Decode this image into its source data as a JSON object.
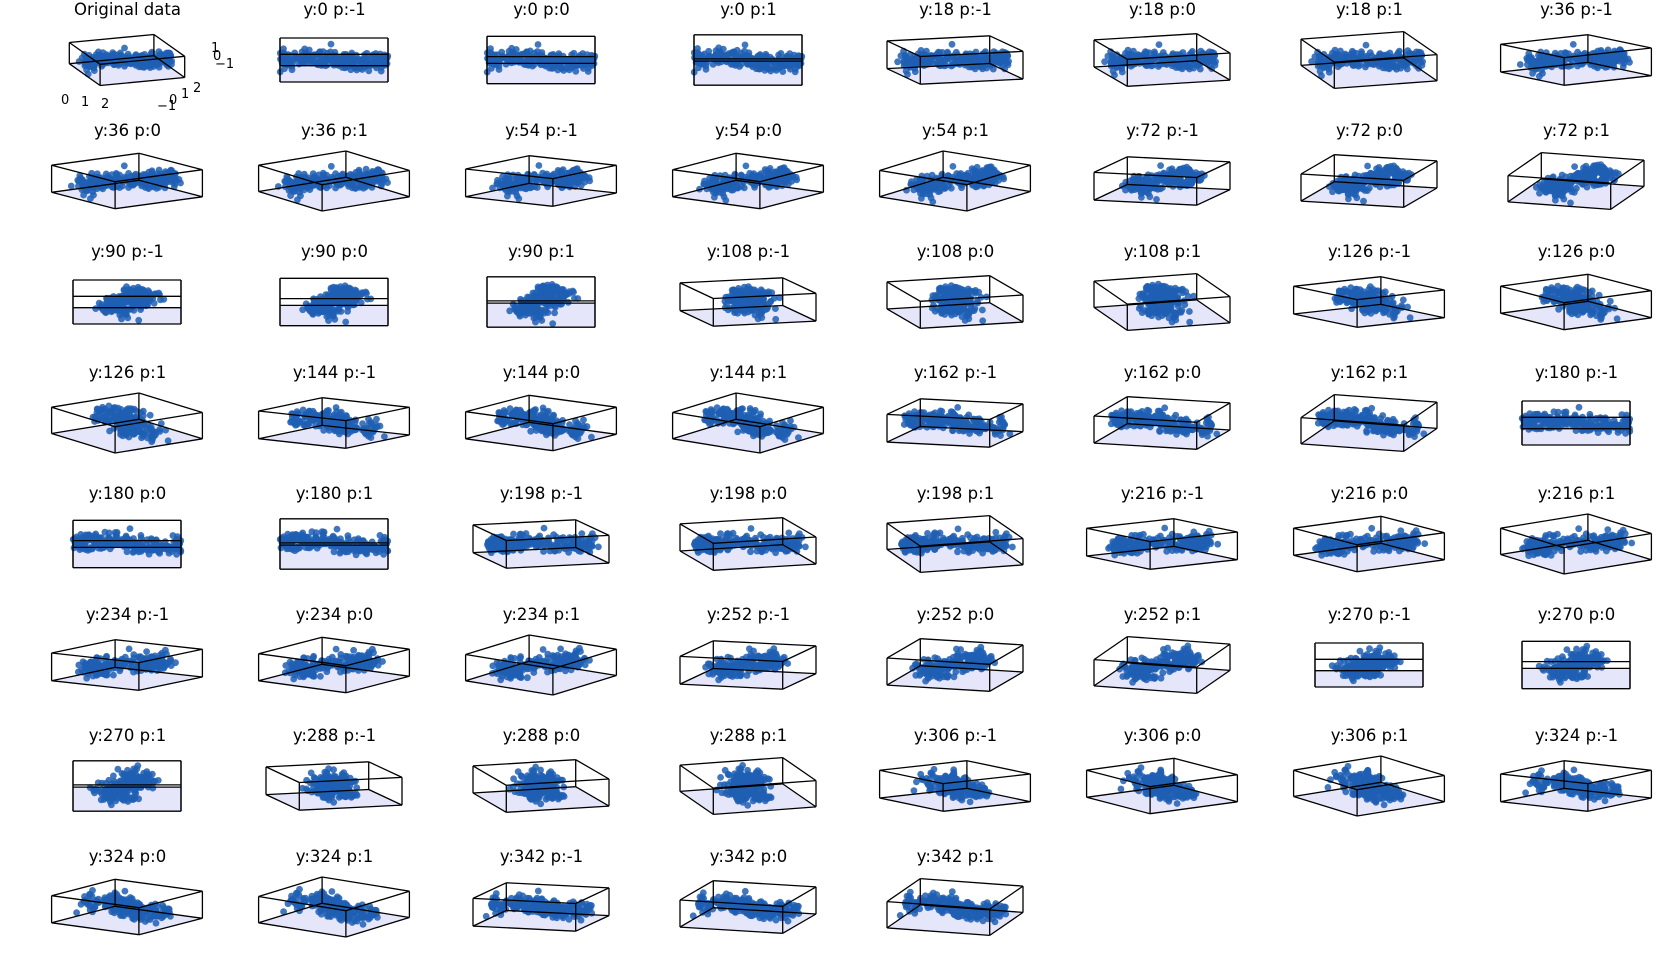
{
  "chart_data": {
    "type": "3d-scatter-grid",
    "description_source": "small multiples of one 3D point cloud viewed from different yaw/pitch angles",
    "colors": {
      "points": "#1f5fb4",
      "pane_fill": "#e6e6fa",
      "box_edge": "#000000"
    },
    "grid": {
      "columns": 8,
      "rows": 8
    },
    "panels": [
      {
        "title": "Original data",
        "yaw": -60,
        "pitch": 30,
        "show_axes": true,
        "x_ticks": [
          "0",
          "1",
          "2"
        ],
        "y_ticks": [
          "−1",
          "0",
          "1",
          "2"
        ],
        "z_ticks": [
          "1",
          "0",
          "−1"
        ]
      },
      {
        "title": "y:0 p:-1",
        "yaw": 0,
        "pitch": -1
      },
      {
        "title": "y:0 p:0",
        "yaw": 0,
        "pitch": 0
      },
      {
        "title": "y:0 p:1",
        "yaw": 0,
        "pitch": 1
      },
      {
        "title": "y:18 p:-1",
        "yaw": 18,
        "pitch": -1
      },
      {
        "title": "y:18 p:0",
        "yaw": 18,
        "pitch": 0
      },
      {
        "title": "y:18 p:1",
        "yaw": 18,
        "pitch": 1
      },
      {
        "title": "y:36 p:-1",
        "yaw": 36,
        "pitch": -1
      },
      {
        "title": "y:36 p:0",
        "yaw": 36,
        "pitch": 0
      },
      {
        "title": "y:36 p:1",
        "yaw": 36,
        "pitch": 1
      },
      {
        "title": "y:54 p:-1",
        "yaw": 54,
        "pitch": -1
      },
      {
        "title": "y:54 p:0",
        "yaw": 54,
        "pitch": 0
      },
      {
        "title": "y:54 p:1",
        "yaw": 54,
        "pitch": 1
      },
      {
        "title": "y:72 p:-1",
        "yaw": 72,
        "pitch": -1
      },
      {
        "title": "y:72 p:0",
        "yaw": 72,
        "pitch": 0
      },
      {
        "title": "y:72 p:1",
        "yaw": 72,
        "pitch": 1
      },
      {
        "title": "y:90 p:-1",
        "yaw": 90,
        "pitch": -1
      },
      {
        "title": "y:90 p:0",
        "yaw": 90,
        "pitch": 0
      },
      {
        "title": "y:90 p:1",
        "yaw": 90,
        "pitch": 1
      },
      {
        "title": "y:108 p:-1",
        "yaw": 108,
        "pitch": -1
      },
      {
        "title": "y:108 p:0",
        "yaw": 108,
        "pitch": 0
      },
      {
        "title": "y:108 p:1",
        "yaw": 108,
        "pitch": 1
      },
      {
        "title": "y:126 p:-1",
        "yaw": 126,
        "pitch": -1
      },
      {
        "title": "y:126 p:0",
        "yaw": 126,
        "pitch": 0
      },
      {
        "title": "y:126 p:1",
        "yaw": 126,
        "pitch": 1
      },
      {
        "title": "y:144 p:-1",
        "yaw": 144,
        "pitch": -1
      },
      {
        "title": "y:144 p:0",
        "yaw": 144,
        "pitch": 0
      },
      {
        "title": "y:144 p:1",
        "yaw": 144,
        "pitch": 1
      },
      {
        "title": "y:162 p:-1",
        "yaw": 162,
        "pitch": -1
      },
      {
        "title": "y:162 p:0",
        "yaw": 162,
        "pitch": 0
      },
      {
        "title": "y:162 p:1",
        "yaw": 162,
        "pitch": 1
      },
      {
        "title": "y:180 p:-1",
        "yaw": 180,
        "pitch": -1
      },
      {
        "title": "y:180 p:0",
        "yaw": 180,
        "pitch": 0
      },
      {
        "title": "y:180 p:1",
        "yaw": 180,
        "pitch": 1
      },
      {
        "title": "y:198 p:-1",
        "yaw": 198,
        "pitch": -1
      },
      {
        "title": "y:198 p:0",
        "yaw": 198,
        "pitch": 0
      },
      {
        "title": "y:198 p:1",
        "yaw": 198,
        "pitch": 1
      },
      {
        "title": "y:216 p:-1",
        "yaw": 216,
        "pitch": -1
      },
      {
        "title": "y:216 p:0",
        "yaw": 216,
        "pitch": 0
      },
      {
        "title": "y:216 p:1",
        "yaw": 216,
        "pitch": 1
      },
      {
        "title": "y:234 p:-1",
        "yaw": 234,
        "pitch": -1
      },
      {
        "title": "y:234 p:0",
        "yaw": 234,
        "pitch": 0
      },
      {
        "title": "y:234 p:1",
        "yaw": 234,
        "pitch": 1
      },
      {
        "title": "y:252 p:-1",
        "yaw": 252,
        "pitch": -1
      },
      {
        "title": "y:252 p:0",
        "yaw": 252,
        "pitch": 0
      },
      {
        "title": "y:252 p:1",
        "yaw": 252,
        "pitch": 1
      },
      {
        "title": "y:270 p:-1",
        "yaw": 270,
        "pitch": -1
      },
      {
        "title": "y:270 p:0",
        "yaw": 270,
        "pitch": 0
      },
      {
        "title": "y:270 p:1",
        "yaw": 270,
        "pitch": 1
      },
      {
        "title": "y:288 p:-1",
        "yaw": 288,
        "pitch": -1
      },
      {
        "title": "y:288 p:0",
        "yaw": 288,
        "pitch": 0
      },
      {
        "title": "y:288 p:1",
        "yaw": 288,
        "pitch": 1
      },
      {
        "title": "y:306 p:-1",
        "yaw": 306,
        "pitch": -1
      },
      {
        "title": "y:306 p:0",
        "yaw": 306,
        "pitch": 0
      },
      {
        "title": "y:306 p:1",
        "yaw": 306,
        "pitch": 1
      },
      {
        "title": "y:324 p:-1",
        "yaw": 324,
        "pitch": -1
      },
      {
        "title": "y:324 p:0",
        "yaw": 324,
        "pitch": 0
      },
      {
        "title": "y:324 p:1",
        "yaw": 324,
        "pitch": 1
      },
      {
        "title": "y:342 p:-1",
        "yaw": 342,
        "pitch": -1
      },
      {
        "title": "y:342 p:0",
        "yaw": 342,
        "pitch": 0
      },
      {
        "title": "y:342 p:1",
        "yaw": 342,
        "pitch": 1
      }
    ]
  }
}
